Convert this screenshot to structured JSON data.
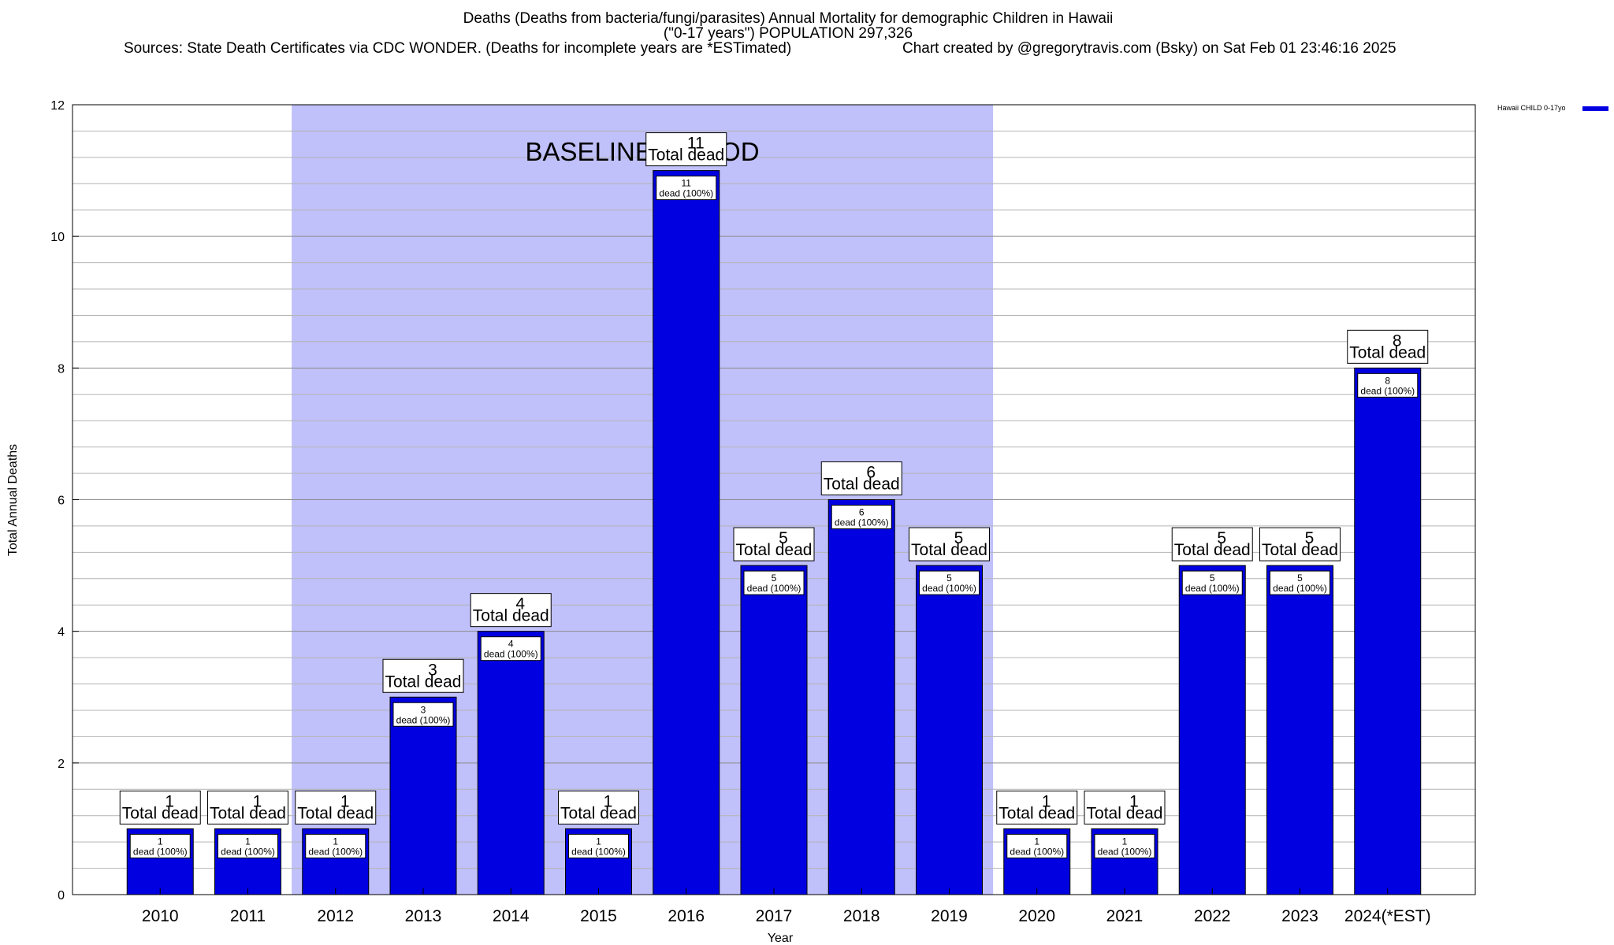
{
  "title": {
    "line1": "Deaths (Deaths from bacteria/fungi/parasites) Annual Mortality for demographic Children in Hawaii",
    "line2": "(\"0-17 years\") POPULATION 297,326",
    "sources": "Sources: State Death Certificates via CDC WONDER. (Deaths for incomplete years are *ESTimated)",
    "credit": "Chart created by @gregorytravis.com (Bsky) on Sat Feb 01 23:46:16 2025"
  },
  "legend": {
    "label": "Hawaii CHILD 0-17yo",
    "color": "#0000e0"
  },
  "colors": {
    "bar": "#0000e0",
    "baseline": "#c0c0fa",
    "grid": "#b4b4b4"
  },
  "chart_data": {
    "type": "bar",
    "title": "Deaths (Deaths from bacteria/fungi/parasites) Annual Mortality for demographic Children in Hawaii",
    "xlabel": "Year",
    "ylabel": "Total Annual Deaths",
    "ylim": [
      0,
      12
    ],
    "yticks": [
      0,
      2,
      4,
      6,
      8,
      10,
      12
    ],
    "categories": [
      "2010",
      "2011",
      "2012",
      "2013",
      "2014",
      "2015",
      "2016",
      "2017",
      "2018",
      "2019",
      "2020",
      "2021",
      "2022",
      "2023",
      "2024(*EST)"
    ],
    "series": [
      {
        "name": "Hawaii CHILD 0-17yo",
        "values": [
          1,
          1,
          1,
          3,
          4,
          1,
          11,
          5,
          6,
          5,
          1,
          1,
          5,
          5,
          8
        ]
      }
    ],
    "total_label": "Total dead",
    "bar_inner_label": "dead (100%)",
    "baseline_period": {
      "label": "BASELINE PERIOD",
      "from": "2012",
      "to": "2019"
    },
    "grid": true,
    "legend_position": "right"
  }
}
